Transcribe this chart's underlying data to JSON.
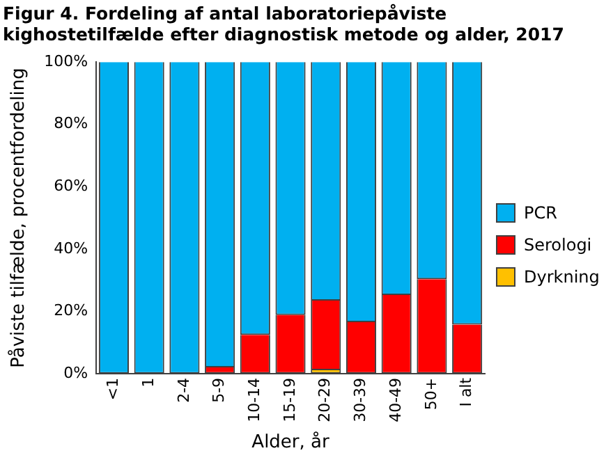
{
  "chart_data": {
    "type": "bar",
    "stacked": true,
    "title": "Figur 4. Fordeling af antal laboratoriepåviste kighostetilfælde efter diagnostisk metode og alder, 2017",
    "xlabel": "Alder, år",
    "ylabel": "Påviste tilfælde, procentfordeling",
    "categories": [
      "<1",
      "1",
      "2-4",
      "5-9",
      "10-14",
      "15-19",
      "20-29",
      "30-39",
      "40-49",
      "50+",
      "I alt"
    ],
    "series": [
      {
        "name": "Dyrkning",
        "color": "#ffc000",
        "values": [
          0,
          0,
          0,
          0,
          0,
          0,
          1.1,
          0,
          0,
          0,
          0
        ]
      },
      {
        "name": "Serologi",
        "color": "#ff0000",
        "values": [
          0,
          0,
          0,
          2,
          12.4,
          18.8,
          22.3,
          16.5,
          25.2,
          30.3,
          15.7
        ]
      },
      {
        "name": "PCR",
        "color": "#00b0f0",
        "values": [
          100,
          100,
          100,
          98,
          87.6,
          81.2,
          76.6,
          83.5,
          74.8,
          69.7,
          84.3
        ]
      }
    ],
    "ylim": [
      0,
      100
    ],
    "yticks": [
      {
        "value": 0,
        "label": "0%"
      },
      {
        "value": 20,
        "label": "20%"
      },
      {
        "value": 40,
        "label": "40%"
      },
      {
        "value": 60,
        "label": "60%"
      },
      {
        "value": 80,
        "label": "80%"
      },
      {
        "value": 100,
        "label": "100%"
      }
    ],
    "grid": false,
    "legend": "right"
  }
}
